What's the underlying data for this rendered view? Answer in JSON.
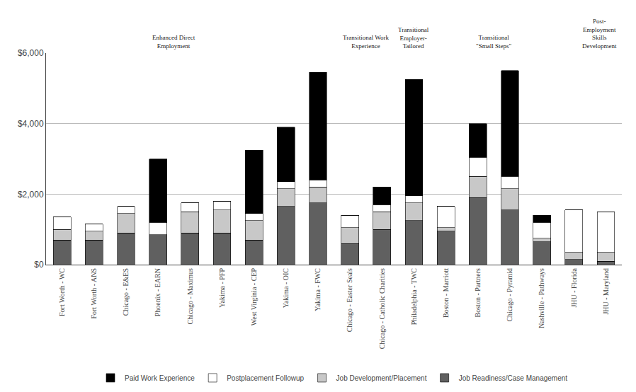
{
  "chart_data": {
    "type": "bar",
    "stacked": true,
    "categories": [
      "Fort Worth - WC",
      "Fort Worth - ANS",
      "Chicago - E&ES",
      "Phoenix - EARN",
      "Chicago - Maximus",
      "Yakima - PFP",
      "West Virginia - CEP",
      "Yakima - OIC",
      "Yakima - FWC",
      "Chicago - Easter Seals",
      "Chicago - Catholic Charities",
      "Philadelphia - TWC",
      "Boston - Marriott",
      "Boston - Partners",
      "Chicago - Pyramid",
      "Nashville - Pathways",
      "JHU - Florida",
      "JHU - Maryland"
    ],
    "series": [
      {
        "name": "Job Readiness/Case Management",
        "color": "#606060",
        "values": [
          700,
          700,
          900,
          850,
          900,
          900,
          700,
          1650,
          1750,
          600,
          1000,
          1250,
          950,
          1900,
          1550,
          650,
          150,
          100
        ]
      },
      {
        "name": "Job Development/Placement",
        "color": "#c8c8c8",
        "values": [
          300,
          250,
          550,
          0,
          600,
          650,
          550,
          500,
          450,
          450,
          500,
          500,
          100,
          600,
          600,
          100,
          200,
          250
        ]
      },
      {
        "name": "Postplacement Followup",
        "color": "#ffffff",
        "values": [
          350,
          200,
          200,
          350,
          250,
          250,
          200,
          200,
          200,
          350,
          200,
          200,
          600,
          550,
          350,
          450,
          1200,
          1150
        ]
      },
      {
        "name": "Paid Work Experience",
        "color": "#000000",
        "values": [
          0,
          0,
          0,
          1800,
          0,
          0,
          1800,
          1550,
          3050,
          0,
          500,
          3300,
          0,
          950,
          3000,
          200,
          0,
          0
        ]
      }
    ],
    "ylim": [
      0,
      6000
    ],
    "yticks": [
      {
        "value": 0,
        "label": "$0"
      },
      {
        "value": 2000,
        "label": "$2,000"
      },
      {
        "value": 4000,
        "label": "$4,000"
      },
      {
        "value": 6000,
        "label": "$6,000"
      }
    ],
    "grid": true,
    "legend": "bottom",
    "annotations": [
      "Enhanced Direct\nEmployment",
      "Transitional Work\nExperience",
      "Transitional\nEmployer-\nTailored",
      "Transitional\n\"Small Steps\"",
      "Post-\nEmployment\nSkills\nDevelopment"
    ]
  }
}
